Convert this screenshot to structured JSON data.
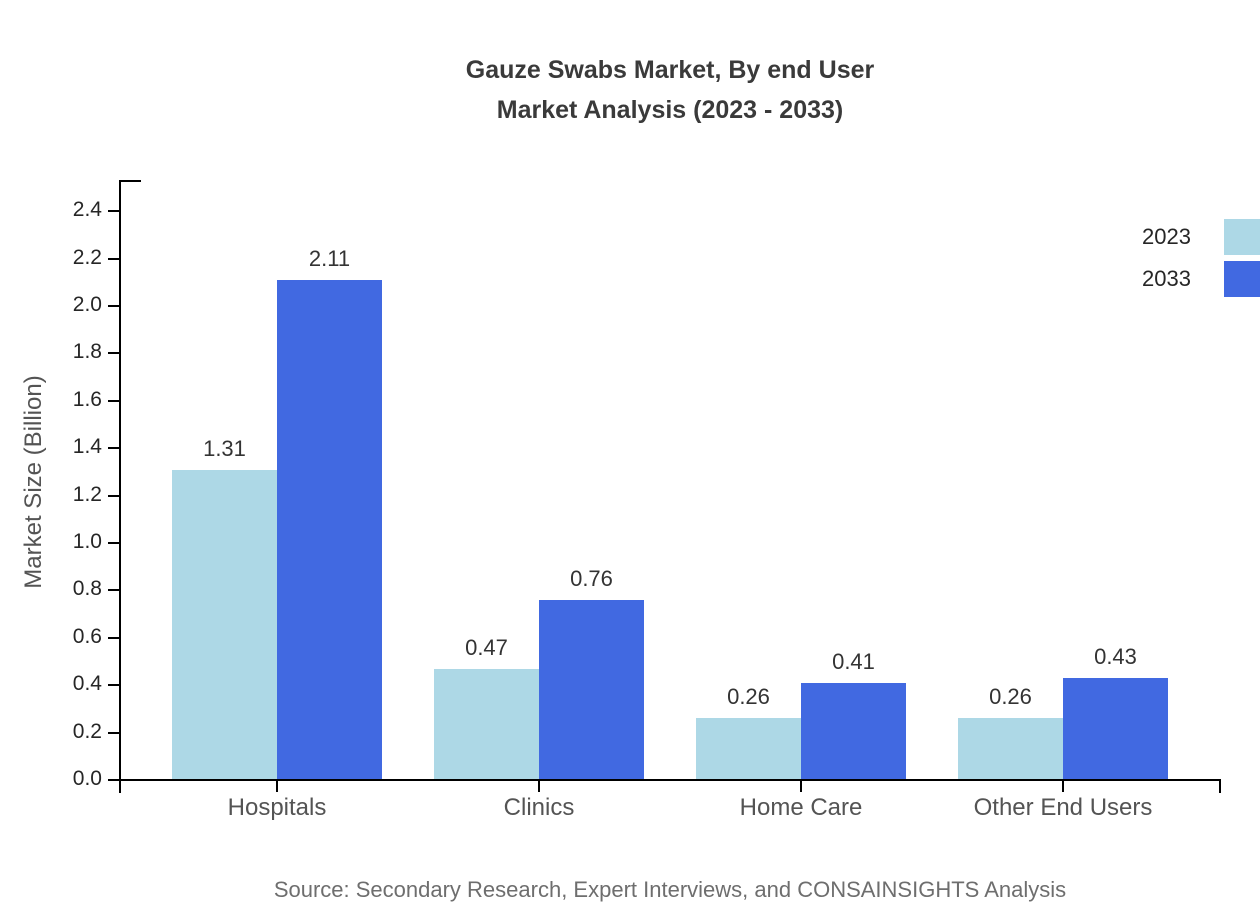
{
  "title": {
    "line1": "Gauze Swabs Market, By end User",
    "line2": "Market Analysis (2023 - 2033)"
  },
  "source_note": "Source: Secondary Research, Expert Interviews, and CONSAINSIGHTS Analysis",
  "chart_data": {
    "type": "bar",
    "title": "Gauze Swabs Market, By end User — Market Analysis (2023 - 2033)",
    "categories": [
      "Hospitals",
      "Clinics",
      "Home Care",
      "Other End Users"
    ],
    "series": [
      {
        "name": "2023",
        "color": "#ADD8E6",
        "values": [
          1.31,
          0.47,
          0.26,
          0.26
        ]
      },
      {
        "name": "2033",
        "color": "#4169E1",
        "values": [
          2.11,
          0.76,
          0.41,
          0.43
        ]
      }
    ],
    "xlabel": "",
    "ylabel": "Market Size (Billion)",
    "ylim": [
      0,
      2.5
    ],
    "yticks": [
      0.0,
      0.2,
      0.4,
      0.6,
      0.8,
      1.0,
      1.2,
      1.4,
      1.6,
      1.8,
      2.0,
      2.2,
      2.4
    ],
    "grid": false,
    "bar_value_labels": true,
    "legend_position": "upper-right-outside",
    "axis_color": "#000000"
  }
}
